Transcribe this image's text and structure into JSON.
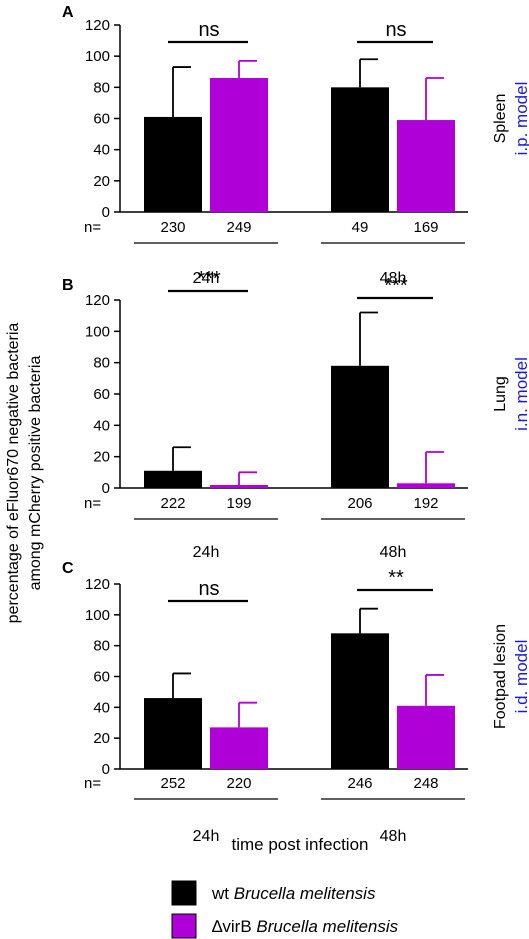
{
  "figure": {
    "y_axis_label_line1": "percentage of eFluor670 negative bacteria",
    "y_axis_label_line2": "among mCherry positive bacteria",
    "x_axis_label": "time post infection",
    "n_prefix": "n="
  },
  "legend": [
    {
      "prefix": "wt ",
      "italic": "Brucella melitensis",
      "color": "#000000"
    },
    {
      "prefix": "∆virB ",
      "italic": "Brucella melitensis",
      "color": "#b000d8"
    }
  ],
  "colors": {
    "wt": "#000000",
    "virB": "#b000d8",
    "model_text": "#1a1adc"
  },
  "chart_data": [
    {
      "type": "bar",
      "panel": "A",
      "organ": "Spleen",
      "model": "i.p. model",
      "categories": [
        "24h",
        "48h"
      ],
      "ylim": [
        0,
        120
      ],
      "yticks": [
        0,
        20,
        40,
        60,
        80,
        100,
        120
      ],
      "series": [
        {
          "values": [
            61,
            80
          ],
          "errors": [
            32,
            18
          ],
          "n": [
            "230",
            "49"
          ]
        },
        {
          "values": [
            86,
            59
          ],
          "errors": [
            11,
            27
          ],
          "n": [
            "249",
            "169"
          ]
        }
      ],
      "significance": [
        "ns",
        "ns"
      ]
    },
    {
      "type": "bar",
      "panel": "B",
      "organ": "Lung",
      "model": "i.n. model",
      "categories": [
        "24h",
        "48h"
      ],
      "ylim": [
        0,
        120
      ],
      "yticks": [
        0,
        20,
        40,
        60,
        80,
        100,
        120
      ],
      "series": [
        {
          "values": [
            11,
            78
          ],
          "errors": [
            15,
            34
          ],
          "n": [
            "222",
            "206"
          ]
        },
        {
          "values": [
            1,
            3
          ],
          "errors": [
            9,
            20
          ],
          "n": [
            "199",
            "192"
          ]
        }
      ],
      "significance": [
        "***",
        "***"
      ]
    },
    {
      "type": "bar",
      "panel": "C",
      "organ": "Footpad lesion",
      "model": "i.d. model",
      "categories": [
        "24h",
        "48h"
      ],
      "ylim": [
        0,
        120
      ],
      "yticks": [
        0,
        20,
        40,
        60,
        80,
        100,
        120
      ],
      "series": [
        {
          "values": [
            46,
            88
          ],
          "errors": [
            16,
            16
          ],
          "n": [
            "252",
            "246"
          ]
        },
        {
          "values": [
            27,
            41
          ],
          "errors": [
            16,
            20
          ],
          "n": [
            "220",
            "248"
          ]
        }
      ],
      "significance": [
        "ns",
        "**"
      ]
    }
  ]
}
